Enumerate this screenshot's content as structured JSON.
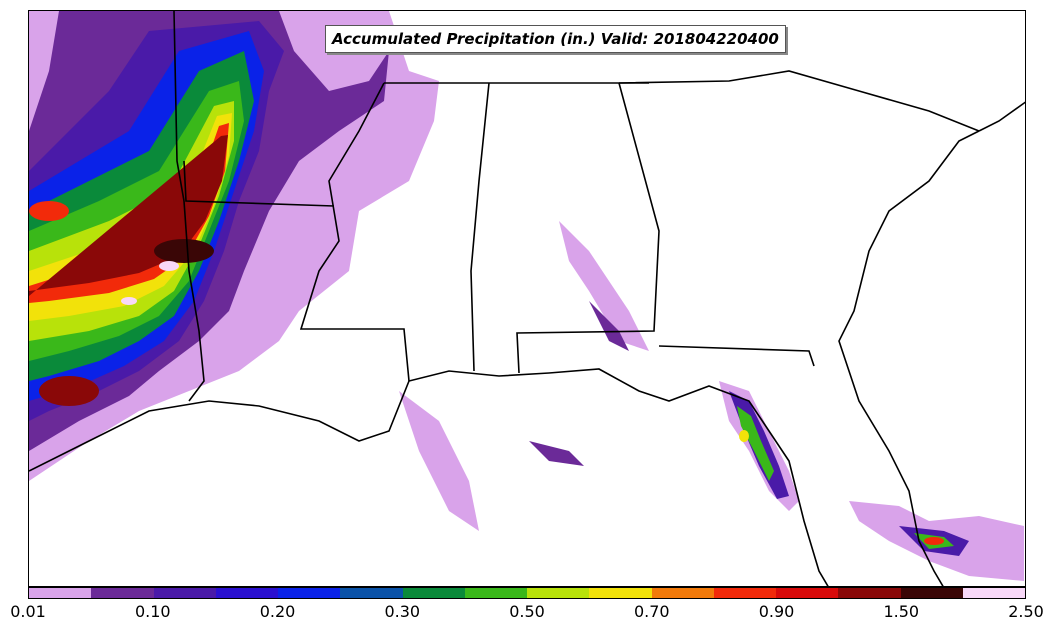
{
  "title": "Accumulated Precipitation (in.) Valid: 201804220400",
  "colorbar": {
    "colors": [
      "#d9a3ea",
      "#6b2a98",
      "#4a1aa8",
      "#2a10d0",
      "#0a22e8",
      "#0a52a8",
      "#0a8a3a",
      "#3ab81a",
      "#b8e20a",
      "#f2e20a",
      "#f27a0a",
      "#f22a0a",
      "#d80a0a",
      "#8a0808",
      "#3a0606",
      "#f8d8f8"
    ],
    "tick_labels": [
      "0.01",
      "0.10",
      "0.20",
      "0.30",
      "0.50",
      "0.70",
      "0.90",
      "1.50",
      "2.50"
    ]
  }
}
